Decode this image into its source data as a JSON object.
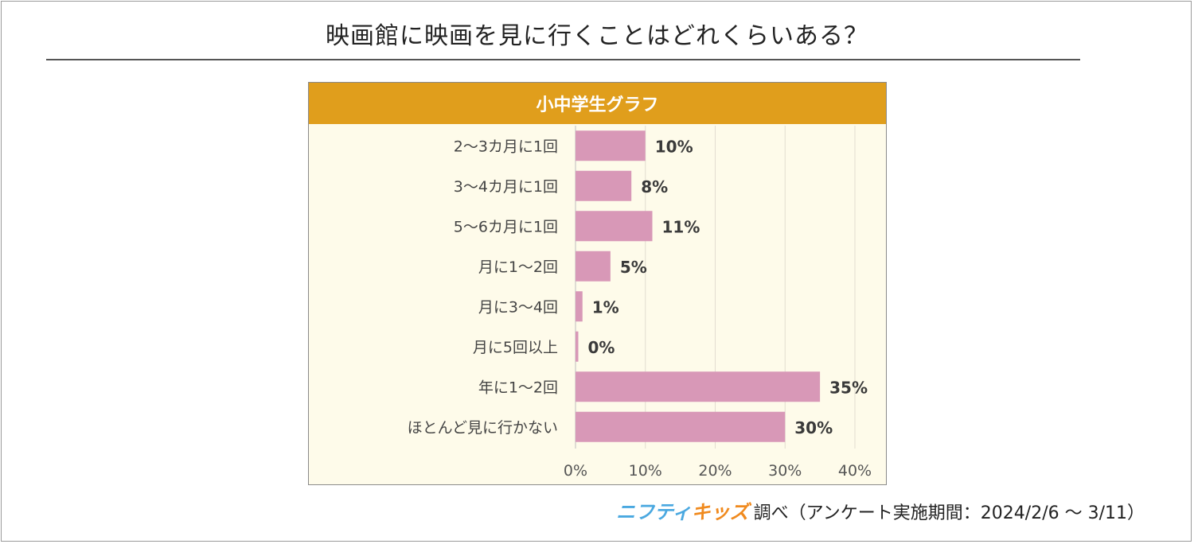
{
  "title": "映画館に映画を見に行くことはどれくらいある？",
  "panel_title": "小中学生グラフ",
  "footer": {
    "logo_part1": "ニフティ",
    "logo_part2": "キッズ",
    "text": "調べ（アンケート実施期間：2024/2/6 ～ 3/11）"
  },
  "colors": {
    "header": "#e09e1c",
    "bar": "#d898b7",
    "plot_bg": "#fefbea",
    "grid": "#e2ddd0"
  },
  "chart_data": {
    "type": "bar",
    "orientation": "horizontal",
    "categories": [
      "2～3カ月に1回",
      "3～4カ月に1回",
      "5～6カ月に1回",
      "月に1～2回",
      "月に3～4回",
      "月に5回以上",
      "年に1～2回",
      "ほとんど見に行かない"
    ],
    "values": [
      10,
      8,
      11,
      5,
      1,
      0.4,
      35,
      30
    ],
    "labels": [
      "10%",
      "8%",
      "11%",
      "5%",
      "1%",
      "0%",
      "35%",
      "30%"
    ],
    "xlim": [
      0,
      40
    ],
    "xticks": [
      0,
      10,
      20,
      30,
      40
    ],
    "xtick_labels": [
      "0%",
      "10%",
      "20%",
      "30%",
      "40%"
    ],
    "grid": true
  }
}
